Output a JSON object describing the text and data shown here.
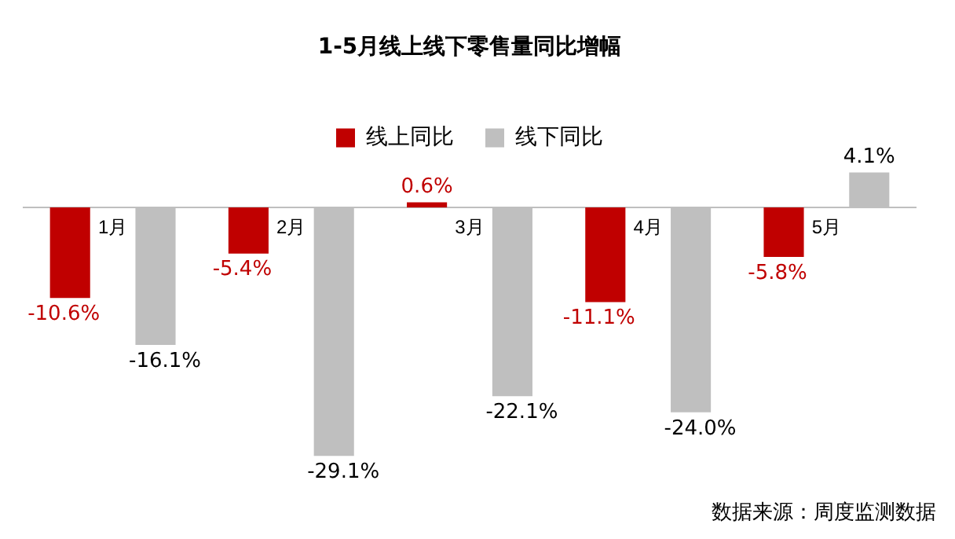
{
  "chart_data": {
    "type": "bar",
    "title": "1-5月线上线下零售量同比增幅",
    "categories": [
      "1月",
      "2月",
      "3月",
      "4月",
      "5月"
    ],
    "series": [
      {
        "name": "线上同比",
        "color": "#c00000",
        "values": [
          -10.6,
          -5.4,
          0.6,
          -11.1,
          -5.8
        ],
        "value_labels": [
          "-10.6%",
          "-5.4%",
          "0.6%",
          "-11.1%",
          "-5.8%"
        ]
      },
      {
        "name": "线下同比",
        "color": "#bfbfbf",
        "values": [
          -16.1,
          -29.1,
          -22.1,
          -24.0,
          4.1
        ],
        "value_labels": [
          "-16.1%",
          "-29.1%",
          "-22.1%",
          "-24.0%",
          "4.1%"
        ]
      }
    ],
    "data_labels": true,
    "legend": "top",
    "grid": false,
    "annotations": [
      "数据来源：周度监测数据"
    ]
  }
}
